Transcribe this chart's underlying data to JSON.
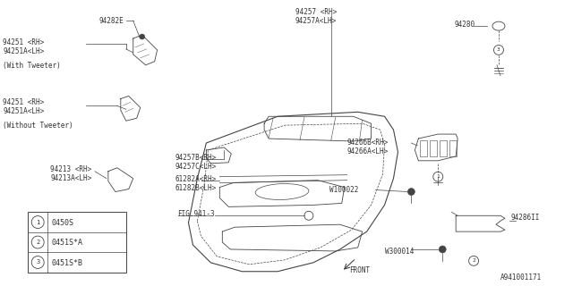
{
  "bg_color": "#ffffff",
  "line_color": "#444444",
  "text_color": "#333333",
  "diagram_number": "A941001171",
  "legend": [
    {
      "num": "1",
      "code": "0450S"
    },
    {
      "num": "2",
      "code": "0451S*A"
    },
    {
      "num": "3",
      "code": "0451S*B"
    }
  ]
}
